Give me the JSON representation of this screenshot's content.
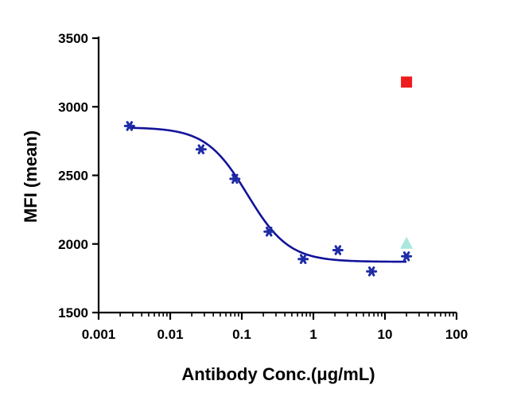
{
  "chart_data": {
    "type": "scatter",
    "xlabel": "Antibody Conc.(μg/mL)",
    "ylabel": "MFI (mean)",
    "xscale": "log",
    "xlim": [
      0.001,
      100
    ],
    "ylim": [
      1500,
      3500
    ],
    "x_ticks": [
      0.001,
      0.01,
      0.1,
      1,
      10,
      100
    ],
    "x_tick_labels": [
      "0.001",
      "0.01",
      "0.1",
      "1",
      "10",
      "100"
    ],
    "y_ticks": [
      1500,
      2000,
      2500,
      3000,
      3500
    ],
    "y_tick_labels": [
      "1500",
      "2000",
      "2500",
      "3000",
      "3500"
    ],
    "grid": false,
    "series": [
      {
        "color": "#1f2ca6",
        "marker": "asterisk",
        "x": [
          0.0027,
          0.027,
          0.08,
          0.24,
          0.72,
          2.2,
          6.5,
          20
        ],
        "y": [
          2860,
          2690,
          2475,
          2090,
          1890,
          1955,
          1800,
          1910
        ],
        "fit": {
          "model": "4PL",
          "top": 2850,
          "bottom": 1870,
          "ec50": 0.12,
          "hill_slope": 1.5,
          "color": "#13139a"
        }
      },
      {
        "color": "#ee1c1c",
        "marker": "square",
        "x": [
          20
        ],
        "y": [
          3180
        ]
      },
      {
        "color": "#a9e8de",
        "marker": "triangle",
        "x": [
          20
        ],
        "y": [
          2000
        ]
      }
    ]
  }
}
